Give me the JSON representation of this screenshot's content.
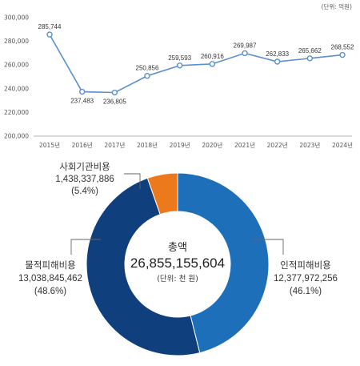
{
  "chart_data": [
    {
      "type": "line",
      "unit_note": "(단위: 억원)",
      "title": "",
      "xlabel": "",
      "ylabel": "",
      "ylim": [
        200000,
        300000
      ],
      "y_ticks": [
        "200,000",
        "220,000",
        "240,000",
        "260,000",
        "280,000",
        "300,000"
      ],
      "y_tick_values": [
        200000,
        220000,
        240000,
        260000,
        280000,
        300000
      ],
      "categories": [
        "2015년",
        "2016년",
        "2017년",
        "2018년",
        "2019년",
        "2020년",
        "2021년",
        "2022년",
        "2023년",
        "2024년"
      ],
      "values": [
        285744,
        237483,
        236805,
        250856,
        259593,
        260916,
        269987,
        262833,
        265662,
        268552
      ],
      "value_labels": [
        "285,744",
        "237,483",
        "236,805",
        "250,856",
        "259,593",
        "260,916",
        "269,987",
        "262,833",
        "265,662",
        "268,552"
      ],
      "label_positions": [
        "above",
        "below",
        "below",
        "above",
        "above",
        "above",
        "above",
        "above",
        "above",
        "above"
      ],
      "grid": false,
      "line_color": "#5b8fd1"
    },
    {
      "type": "pie",
      "style": "donut",
      "center_title": "총액",
      "center_total": "26,855,155,604",
      "center_unit": "(단위: 천 원)",
      "slices": [
        {
          "name": "인적피해비용",
          "value": 12377972256,
          "value_label": "12,377,972,256",
          "percent": "(46.1%)",
          "color": "#1e6fba"
        },
        {
          "name": "물적피해비용",
          "value": 13038845462,
          "value_label": "13,038,845,462",
          "percent": "(48.6%)",
          "color": "#0f3f7c"
        },
        {
          "name": "사회기관비용",
          "value": 1438337886,
          "value_label": "1,438,337,886",
          "percent": "(5.4%)",
          "color": "#ec7a1d"
        }
      ]
    }
  ]
}
